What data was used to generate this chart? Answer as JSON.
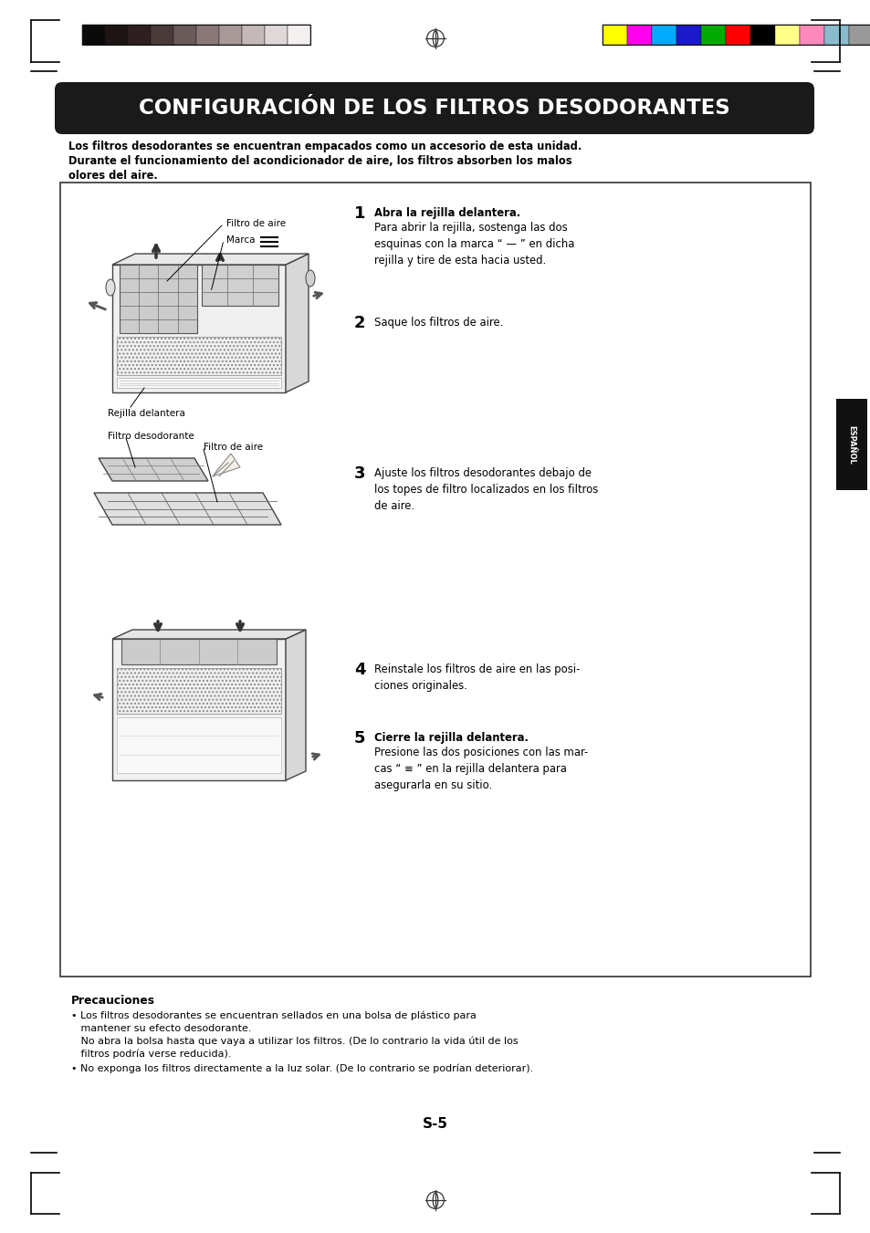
{
  "title": "CONFIGURACIÓN DE LOS FILTROS DESODORANTES",
  "title_bg": "#1a1a1a",
  "title_color": "#ffffff",
  "page_bg": "#ffffff",
  "page_number": "S-5",
  "intro_line1": "Los filtros desodorantes se encuentran empacados como un accesorio de esta unidad.",
  "intro_line2": "Durante el funcionamiento del acondicionador de aire, los filtros absorben los malos",
  "intro_line3": "olores del aire.",
  "step1_num": "1",
  "step1_title": "Abra la rejilla delantera.",
  "step1_text": "Para abrir la rejilla, sostenga las dos\nesquinas con la marca “ — ” en dicha\nrejilla y tire de esta hacia usted.",
  "step2_num": "2",
  "step2_text": "Saque los filtros de aire.",
  "step3_num": "3",
  "step3_text": "Ajuste los filtros desodorantes debajo de\nlos topes de filtro localizados en los filtros\nde aire.",
  "step4_num": "4",
  "step4_text": "Reinstale los filtros de aire en las posi-\nciones originales.",
  "step5_num": "5",
  "step5_title": "Cierre la rejilla delantera.",
  "step5_text": "Presione las dos posiciones con las mar-\ncas “ ≡ ” en la rejilla delantera para\nasegurarla en su sitio.",
  "precautions_title": "Precauciones",
  "precaution1a": "• Los filtros desodorantes se encuentran sellados en una bolsa de plástico para",
  "precaution1b": "   mantener su efecto desodorante.",
  "precaution1c": "   No abra la bolsa hasta que vaya a utilizar los filtros. (De lo contrario la vida útil de los",
  "precaution1d": "   filtros podría verse reducida).",
  "precaution2": "• No exponga los filtros directamente a la luz solar. (De lo contrario se podrían deteriorar).",
  "label_filtro_aire1": "Filtro de aire",
  "label_marca": "Marca",
  "label_rejilla": "Rejilla delantera",
  "label_filtro_desodorante": "Filtro desodorante",
  "label_filtro_aire2": "Filtro de aire",
  "espanol_label": "ESPAÑOL",
  "color_bar_colors": [
    "#ffff00",
    "#ff00ee",
    "#00aaff",
    "#1a1acc",
    "#00aa00",
    "#ff0000",
    "#000000",
    "#ffff88",
    "#ff88bb",
    "#88bbcc",
    "#999999"
  ],
  "bw_bar_colors": [
    "#0a0a0a",
    "#1e1414",
    "#2e2020",
    "#4a3a3a",
    "#6a5a5a",
    "#8a7878",
    "#a89898",
    "#c4b8b8",
    "#e0d8d8",
    "#f5f0f0"
  ],
  "bar_outline": "#222222",
  "crosshair_color": "#333333"
}
